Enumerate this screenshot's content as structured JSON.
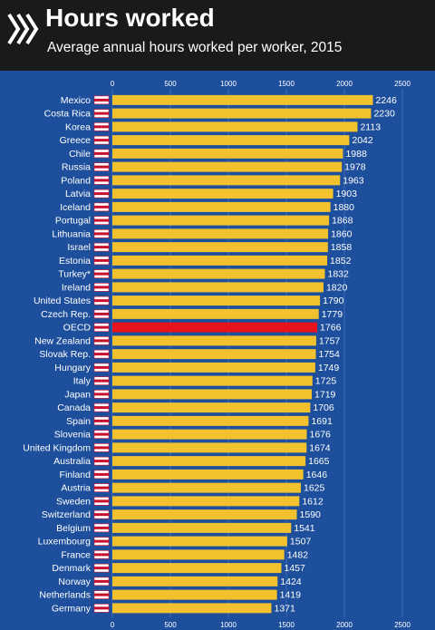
{
  "header": {
    "title": "Hours worked",
    "subtitle": "Average annual hours worked per worker, 2015"
  },
  "colors": {
    "background": "#1d4f9c",
    "header_background": "#1a1a1a",
    "bar": "#f2c12e",
    "highlight_bar": "#e8141b",
    "text": "#ffffff"
  },
  "chart_data": {
    "type": "bar",
    "orientation": "horizontal",
    "title": "Hours worked",
    "subtitle": "Average annual hours worked per worker, 2015",
    "xlim": [
      0,
      2500
    ],
    "ticks": [
      0,
      500,
      1000,
      1500,
      2000,
      2500
    ],
    "grid": true,
    "highlight": "OECD",
    "categories": [
      "Mexico",
      "Costa Rica",
      "Korea",
      "Greece",
      "Chile",
      "Russia",
      "Poland",
      "Latvia",
      "Iceland",
      "Portugal",
      "Lithuania",
      "Israel",
      "Estonia",
      "Turkey*",
      "Ireland",
      "United States",
      "Czech Rep.",
      "OECD",
      "New Zealand",
      "Slovak Rep.",
      "Hungary",
      "Italy",
      "Japan",
      "Canada",
      "Spain",
      "Slovenia",
      "United Kingdom",
      "Australia",
      "Finland",
      "Austria",
      "Sweden",
      "Switzerland",
      "Belgium",
      "Luxembourg",
      "France",
      "Denmark",
      "Norway",
      "Netherlands",
      "Germany"
    ],
    "values": [
      2246,
      2230,
      2113,
      2042,
      1988,
      1978,
      1963,
      1903,
      1880,
      1868,
      1860,
      1858,
      1852,
      1832,
      1820,
      1790,
      1779,
      1766,
      1757,
      1754,
      1749,
      1725,
      1719,
      1706,
      1691,
      1676,
      1674,
      1665,
      1646,
      1625,
      1612,
      1590,
      1541,
      1507,
      1482,
      1457,
      1424,
      1419,
      1371
    ]
  }
}
